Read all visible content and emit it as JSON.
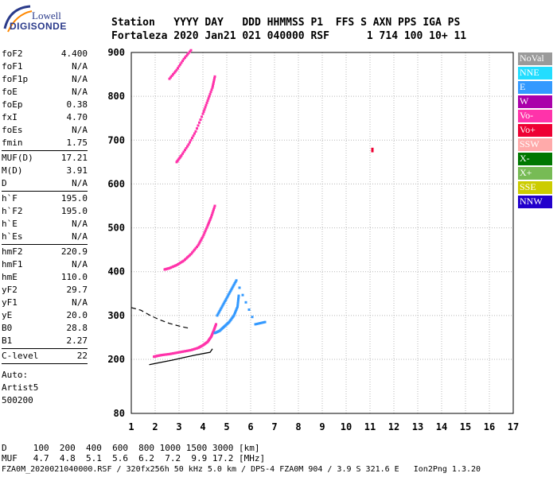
{
  "logo": {
    "line1": "Lowell",
    "line2": "DIGISONDE"
  },
  "header": {
    "labels": [
      "Station",
      "YYYY",
      "DAY",
      "DDD",
      "HHMMSS",
      "P1",
      "FFS",
      "S",
      "AXN",
      "PPS",
      "IGA",
      "PS"
    ],
    "values": [
      "Fortaleza",
      "2020",
      "Jan21",
      "021",
      "040000",
      "RSF",
      "",
      "1",
      "714",
      "100",
      "10+",
      "11"
    ],
    "line1": "Station   YYYY DAY   DDD HHMMSS P1  FFS S AXN PPS IGA PS",
    "line2": "Fortaleza 2020 Jan21 021 040000 RSF      1 714 100 10+ 11"
  },
  "params": {
    "group1": [
      {
        "k": "foF2",
        "v": "4.400"
      },
      {
        "k": "foF1",
        "v": "N/A"
      },
      {
        "k": "foF1p",
        "v": "N/A"
      },
      {
        "k": "foE",
        "v": "N/A"
      },
      {
        "k": "foEp",
        "v": "0.38"
      },
      {
        "k": "fxI",
        "v": "4.70"
      },
      {
        "k": "foEs",
        "v": "N/A"
      },
      {
        "k": "fmin",
        "v": "1.75"
      }
    ],
    "group2": [
      {
        "k": "MUF(D)",
        "v": "17.21"
      },
      {
        "k": "M(D)",
        "v": "3.91"
      },
      {
        "k": "D",
        "v": "N/A"
      }
    ],
    "group3": [
      {
        "k": "h`F",
        "v": "195.0"
      },
      {
        "k": "h`F2",
        "v": "195.0"
      },
      {
        "k": "h`E",
        "v": "N/A"
      },
      {
        "k": "h`Es",
        "v": "N/A"
      }
    ],
    "group4": [
      {
        "k": "hmF2",
        "v": "220.9"
      },
      {
        "k": "hmF1",
        "v": "N/A"
      },
      {
        "k": "hmE",
        "v": "110.0"
      },
      {
        "k": "yF2",
        "v": "29.7"
      },
      {
        "k": "yF1",
        "v": "N/A"
      },
      {
        "k": "yE",
        "v": "20.0"
      },
      {
        "k": "B0",
        "v": "28.8"
      },
      {
        "k": "B1",
        "v": "2.27"
      }
    ],
    "group5": [
      {
        "k": "C-level",
        "v": "22"
      }
    ],
    "auto_label": "Auto:",
    "auto_value": "Artist5",
    "auto_code": "500200"
  },
  "legend": [
    {
      "label": "NoVal",
      "color": "#9a9a9a"
    },
    {
      "label": "NNE",
      "color": "#22ddff"
    },
    {
      "label": "E",
      "color": "#3399ff"
    },
    {
      "label": "W",
      "color": "#aa00aa"
    },
    {
      "label": "Vo-",
      "color": "#ff33aa"
    },
    {
      "label": "Vo+",
      "color": "#ee0033"
    },
    {
      "label": "SSW",
      "color": "#ffaaaa"
    },
    {
      "label": "X-",
      "color": "#007700"
    },
    {
      "label": "X+",
      "color": "#77bb55"
    },
    {
      "label": "SSE",
      "color": "#cccc00"
    },
    {
      "label": "NNW",
      "color": "#2200cc"
    }
  ],
  "chart_data": {
    "type": "scatter",
    "xlim": [
      1,
      17
    ],
    "ylim": [
      80,
      900
    ],
    "x_ticks": [
      1,
      2,
      3,
      4,
      5,
      6,
      7,
      8,
      9,
      10,
      11,
      12,
      13,
      14,
      15,
      16,
      17
    ],
    "y_ticks": [
      80,
      200,
      300,
      400,
      500,
      600,
      700,
      800,
      900
    ],
    "grid": true,
    "traces": [
      {
        "name": "O-trace 1st hop",
        "color": "#ff33aa",
        "points": [
          [
            1.95,
            206
          ],
          [
            2.1,
            208
          ],
          [
            2.3,
            210
          ],
          [
            2.6,
            212
          ],
          [
            2.9,
            215
          ],
          [
            3.2,
            218
          ],
          [
            3.5,
            221
          ],
          [
            3.8,
            226
          ],
          [
            4.0,
            232
          ],
          [
            4.2,
            240
          ],
          [
            4.35,
            252
          ],
          [
            4.45,
            265
          ],
          [
            4.55,
            280
          ]
        ]
      },
      {
        "name": "2nd hop",
        "color": "#ff33aa",
        "points": [
          [
            2.4,
            405
          ],
          [
            2.6,
            408
          ],
          [
            2.9,
            415
          ],
          [
            3.2,
            425
          ],
          [
            3.5,
            440
          ],
          [
            3.8,
            460
          ],
          [
            4.0,
            480
          ],
          [
            4.2,
            505
          ],
          [
            4.35,
            525
          ],
          [
            4.5,
            550
          ]
        ]
      },
      {
        "name": "3rd hop",
        "color": "#ff33aa",
        "points": [
          [
            2.9,
            650
          ],
          [
            3.1,
            665
          ],
          [
            3.4,
            690
          ],
          [
            3.7,
            720
          ],
          [
            4.0,
            760
          ],
          [
            4.2,
            790
          ],
          [
            4.4,
            820
          ],
          [
            4.5,
            845
          ]
        ]
      },
      {
        "name": "4th hop",
        "color": "#ff33aa",
        "points": [
          [
            2.6,
            840
          ],
          [
            2.9,
            860
          ],
          [
            3.2,
            885
          ],
          [
            3.5,
            905
          ]
        ]
      },
      {
        "name": "X-trace",
        "color": "#3399ff",
        "points": [
          [
            4.5,
            260
          ],
          [
            4.7,
            265
          ],
          [
            4.9,
            275
          ],
          [
            5.1,
            285
          ],
          [
            5.3,
            300
          ],
          [
            5.45,
            320
          ],
          [
            5.5,
            345
          ]
        ]
      },
      {
        "name": "spread E",
        "color": "#3399ff",
        "points": [
          [
            4.6,
            300
          ],
          [
            4.8,
            320
          ],
          [
            5.0,
            340
          ],
          [
            5.2,
            360
          ],
          [
            5.4,
            380
          ],
          [
            6.2,
            280
          ],
          [
            6.6,
            285
          ]
        ]
      },
      {
        "name": "Vo+ point",
        "color": "#ee0033",
        "points": [
          [
            11.1,
            675
          ],
          [
            11.1,
            680
          ]
        ]
      }
    ],
    "profile_solid": [
      [
        1.75,
        188
      ],
      [
        2.2,
        193
      ],
      [
        2.7,
        198
      ],
      [
        3.2,
        204
      ],
      [
        3.7,
        210
      ],
      [
        4.0,
        213
      ],
      [
        4.3,
        216
      ],
      [
        4.4,
        224
      ]
    ],
    "profile_dashed": [
      [
        1.0,
        318
      ],
      [
        1.4,
        312
      ],
      [
        1.8,
        300
      ],
      [
        2.2,
        290
      ],
      [
        2.6,
        282
      ],
      [
        3.0,
        276
      ],
      [
        3.4,
        271
      ]
    ]
  },
  "bottom": {
    "row_d_label": "D",
    "row_d": [
      "100",
      "200",
      "400",
      "600",
      "800",
      "1000",
      "1500",
      "3000",
      "[km]"
    ],
    "row_muf_label": "MUF",
    "row_muf": [
      "4.7",
      "4.8",
      "5.1",
      "5.6",
      "6.2",
      "7.2",
      "9.9",
      "17.2",
      "[MHz]"
    ],
    "line1": "D     100  200  400  600  800 1000 1500 3000 [km]",
    "line2": "MUF   4.7  4.8  5.1  5.6  6.2  7.2  9.9 17.2 [MHz]"
  },
  "footer": "FZA0M_2020021040000.RSF / 320fx256h 50 kHz 5.0 km / DPS-4 FZA0M 904 / 3.9 S 321.6 E   Ion2Png 1.3.20"
}
